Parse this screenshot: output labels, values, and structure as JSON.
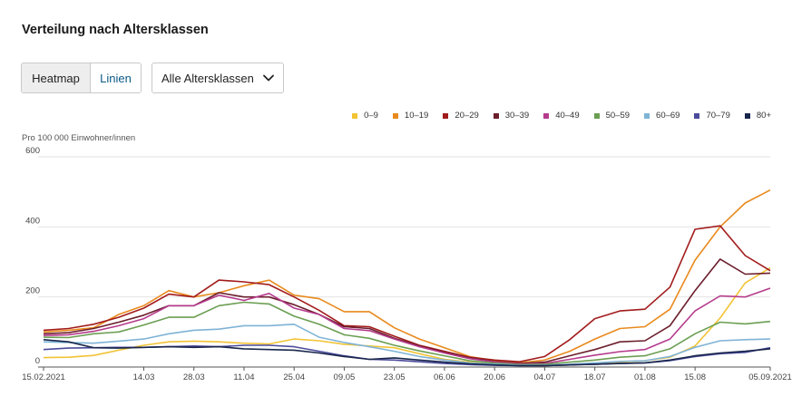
{
  "page": {
    "title": "Verteilung nach Altersklassen",
    "toggle": {
      "heatmap": "Heatmap",
      "lines": "Linien",
      "active": "lines"
    },
    "select": {
      "value": "Alle Altersklassen"
    },
    "unit_label": "Pro 100 000 Einwohner/innen"
  },
  "chart_data": {
    "type": "line",
    "title": "",
    "xlabel": "",
    "ylabel": "Pro 100 000 Einwohner/innen",
    "ylim": [
      0,
      600
    ],
    "yticks": [
      0,
      200,
      400,
      600
    ],
    "grid": true,
    "legend_position": "top-right",
    "x": [
      "15.02.2021",
      "22.02",
      "01.03",
      "08.03",
      "14.03",
      "21.03",
      "28.03",
      "04.04",
      "11.04",
      "18.04",
      "25.04",
      "02.05",
      "09.05",
      "16.05",
      "23.05",
      "30.05",
      "06.06",
      "13.06",
      "20.06",
      "27.06",
      "04.07",
      "11.07",
      "18.07",
      "25.07",
      "01.08",
      "08.08",
      "15.08",
      "22.08",
      "29.08",
      "05.09.2021"
    ],
    "xtick_labels": [
      "15.02.2021",
      "14.03",
      "28.03",
      "11.04",
      "25.04",
      "09.05",
      "23.05",
      "06.06",
      "20.06",
      "04.07",
      "18.07",
      "01.08",
      "15.08",
      "05.09.2021"
    ],
    "xtick_index": [
      0,
      4,
      6,
      8,
      10,
      12,
      14,
      16,
      18,
      20,
      22,
      24,
      26,
      29
    ],
    "series": [
      {
        "name": "0–9",
        "color": "#f2c335",
        "values": [
          27,
          28,
          33,
          48,
          62,
          72,
          74,
          72,
          68,
          66,
          80,
          75,
          65,
          60,
          55,
          38,
          22,
          14,
          8,
          5,
          4,
          6,
          10,
          14,
          18,
          28,
          60,
          140,
          240,
          283
        ]
      },
      {
        "name": "10–19",
        "color": "#e88a1d",
        "values": [
          100,
          105,
          112,
          150,
          175,
          218,
          200,
          212,
          232,
          248,
          205,
          195,
          158,
          158,
          112,
          80,
          55,
          30,
          18,
          12,
          20,
          45,
          80,
          110,
          115,
          165,
          305,
          400,
          468,
          505
        ]
      },
      {
        "name": "20–29",
        "color": "#a21b1b",
        "values": [
          105,
          110,
          122,
          142,
          168,
          208,
          200,
          248,
          243,
          235,
          200,
          162,
          118,
          115,
          88,
          62,
          45,
          28,
          20,
          15,
          30,
          78,
          138,
          160,
          165,
          228,
          393,
          403,
          318,
          275
        ]
      },
      {
        "name": "30–39",
        "color": "#6b1e2c",
        "values": [
          95,
          98,
          110,
          128,
          148,
          175,
          175,
          212,
          200,
          200,
          178,
          150,
          115,
          110,
          82,
          60,
          42,
          26,
          15,
          10,
          14,
          32,
          50,
          72,
          75,
          118,
          218,
          308,
          265,
          268
        ]
      },
      {
        "name": "40–49",
        "color": "#b53a8c",
        "values": [
          90,
          92,
          102,
          118,
          138,
          175,
          175,
          205,
          190,
          210,
          168,
          150,
          110,
          104,
          80,
          58,
          40,
          24,
          14,
          9,
          10,
          22,
          34,
          44,
          50,
          80,
          160,
          203,
          200,
          225
        ]
      },
      {
        "name": "50–59",
        "color": "#6b9e52",
        "values": [
          85,
          84,
          95,
          100,
          120,
          142,
          142,
          175,
          185,
          180,
          145,
          122,
          92,
          82,
          62,
          46,
          32,
          18,
          11,
          7,
          8,
          14,
          20,
          28,
          32,
          52,
          95,
          128,
          123,
          130
        ]
      },
      {
        "name": "60–69",
        "color": "#7fb3d6",
        "values": [
          72,
          70,
          68,
          74,
          80,
          95,
          105,
          108,
          118,
          118,
          122,
          85,
          70,
          58,
          45,
          30,
          20,
          12,
          8,
          5,
          5,
          8,
          12,
          16,
          18,
          30,
          56,
          75,
          78,
          80
        ]
      },
      {
        "name": "70–79",
        "color": "#4b4b9c",
        "values": [
          50,
          54,
          55,
          56,
          56,
          58,
          60,
          58,
          62,
          62,
          58,
          45,
          32,
          22,
          20,
          15,
          10,
          7,
          5,
          4,
          4,
          6,
          8,
          10,
          12,
          18,
          30,
          38,
          42,
          55
        ]
      },
      {
        "name": "80+",
        "color": "#18264a",
        "values": [
          78,
          72,
          55,
          54,
          56,
          58,
          56,
          58,
          52,
          50,
          48,
          40,
          30,
          22,
          26,
          20,
          14,
          9,
          6,
          4,
          4,
          6,
          8,
          10,
          12,
          20,
          32,
          40,
          45,
          52
        ]
      }
    ]
  }
}
